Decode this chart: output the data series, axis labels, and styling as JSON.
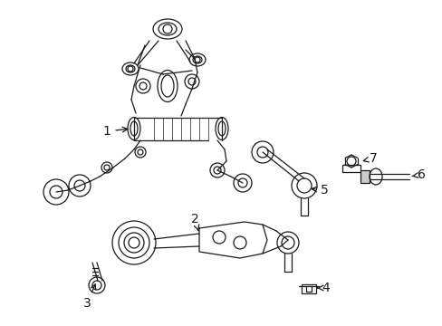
{
  "background_color": "#ffffff",
  "line_color": "#1a1a1a",
  "line_width": 0.9,
  "label_fontsize": 10,
  "fig_width": 4.89,
  "fig_height": 3.6,
  "dpi": 100
}
